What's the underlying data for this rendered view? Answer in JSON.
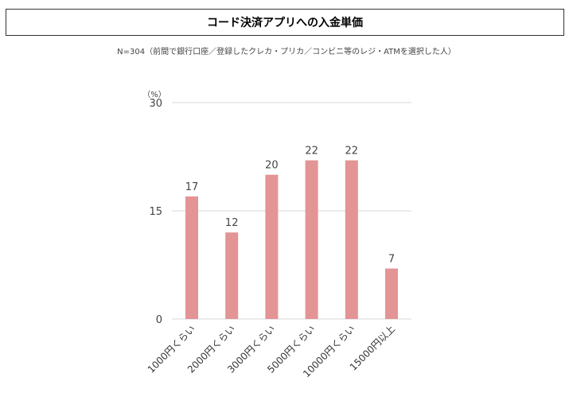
{
  "header": {
    "title": "コード決済アプリへの入金単価",
    "subtitle": "N=304（前間で銀行口座／登録したクレカ・プリカ／コンビニ等のレジ・ATMを選択した人）"
  },
  "colors": {
    "bar": "#e39495",
    "grid": "#d9d9d9"
  },
  "chart_data": {
    "type": "bar",
    "title": "コード決済アプリへの入金単価",
    "unit_label": "（%）",
    "categories": [
      "1000円くらい",
      "2000円くらい",
      "3000円くらい",
      "5000円くらい",
      "10000円くらい",
      "15000円以上"
    ],
    "values": [
      17,
      12,
      20,
      22,
      22,
      7
    ],
    "ylim": [
      0,
      30
    ],
    "yticks": [
      0,
      15,
      30
    ],
    "grid": true,
    "legend": "none"
  }
}
